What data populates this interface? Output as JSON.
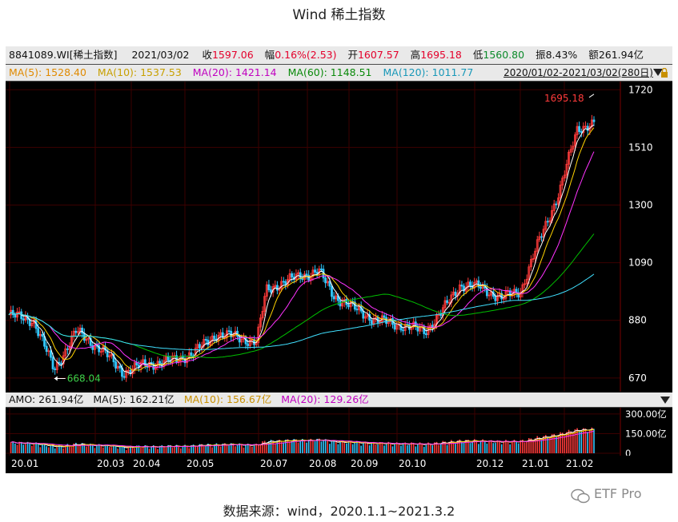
{
  "title": "Wind 稀土指数",
  "header": {
    "code": "8841089.WI[稀土指数]",
    "date": "2021/03/02",
    "close_label": "收",
    "close_value": "1597.06",
    "change_label": "幅",
    "change_value": "0.16%(2.53)",
    "open_label": "开",
    "open_value": "1607.57",
    "high_label": "高",
    "high_value": "1695.18",
    "low_label": "低",
    "low_value": "1560.80",
    "amp_label": "振",
    "amp_value": "8.43%",
    "amount_label": "额",
    "amount_value": "261.94亿"
  },
  "ma_row": {
    "ma5": "MA(5): 1528.40",
    "ma10": "MA(10): 1537.53",
    "ma20": "MA(20): 1421.14",
    "ma60": "MA(60): 1148.51",
    "ma120": "MA(120): 1011.77",
    "range": "2020/01/02-2021/03/02(280日)"
  },
  "amo_row": {
    "amo": "AMO: 261.94亿",
    "ma5": "MA(5): 162.21亿",
    "ma10": "MA(10): 156.67亿",
    "ma20": "MA(20): 129.26亿"
  },
  "annotations": {
    "high_label": "1695.18",
    "low_label": "668.04"
  },
  "colors": {
    "up": "#ff3b3b",
    "down": "#32c8ff",
    "ma5": "#ffffff",
    "ma10": "#ffd200",
    "ma20": "#ff33ff",
    "ma60": "#00c000",
    "ma120": "#40e0ff",
    "grid": "#3c0000"
  },
  "chart_data": {
    "type": "candlestick",
    "title": "Wind 稀土指数",
    "x_ticks": [
      "20.01",
      "20.03",
      "20.04",
      "20.05",
      "20.07",
      "20.08",
      "20.09",
      "20.10",
      "20.12",
      "21.01",
      "21.02"
    ],
    "y_ticks": [
      1720,
      1510,
      1300,
      1090,
      880,
      670
    ],
    "ylim": [
      620,
      1750
    ],
    "volume_ticks": [
      "300.00亿",
      "150.00亿",
      "0"
    ],
    "volume_ylim": [
      0,
      330
    ],
    "close_series": {
      "x": [
        "2020-01-02",
        "2020-01-20",
        "2020-02-04",
        "2020-02-20",
        "2020-03-10",
        "2020-03-25",
        "2020-04-10",
        "2020-04-28",
        "2020-05-15",
        "2020-06-01",
        "2020-06-15",
        "2020-06-30",
        "2020-07-07",
        "2020-07-15",
        "2020-07-31",
        "2020-08-14",
        "2020-08-25",
        "2020-09-10",
        "2020-09-25",
        "2020-10-15",
        "2020-10-30",
        "2020-11-10",
        "2020-11-25",
        "2020-12-10",
        "2020-12-25",
        "2021-01-08",
        "2021-01-22",
        "2021-02-05",
        "2021-02-18",
        "2021-03-02"
      ],
      "values": [
        900,
        880,
        700,
        840,
        770,
        690,
        720,
        730,
        760,
        830,
        820,
        800,
        990,
        1010,
        1040,
        1060,
        970,
        920,
        880,
        860,
        840,
        900,
        1010,
        1000,
        960,
        990,
        1180,
        1350,
        1580,
        1597
      ]
    },
    "ma_series": [
      {
        "name": "MA(5)",
        "value": 1528.4
      },
      {
        "name": "MA(10)",
        "value": 1537.53
      },
      {
        "name": "MA(20)",
        "value": 1421.14
      },
      {
        "name": "MA(60)",
        "value": 1148.51
      },
      {
        "name": "MA(120)",
        "value": 1011.77
      }
    ],
    "high": {
      "value": 1695.18,
      "date": "2021-03-02"
    },
    "low": {
      "value": 668.04,
      "date": "2020-02-04"
    }
  },
  "footer": {
    "source": "数据来源：wind，2020.1.1~2021.3.2",
    "watermark": "ETF Pro"
  }
}
